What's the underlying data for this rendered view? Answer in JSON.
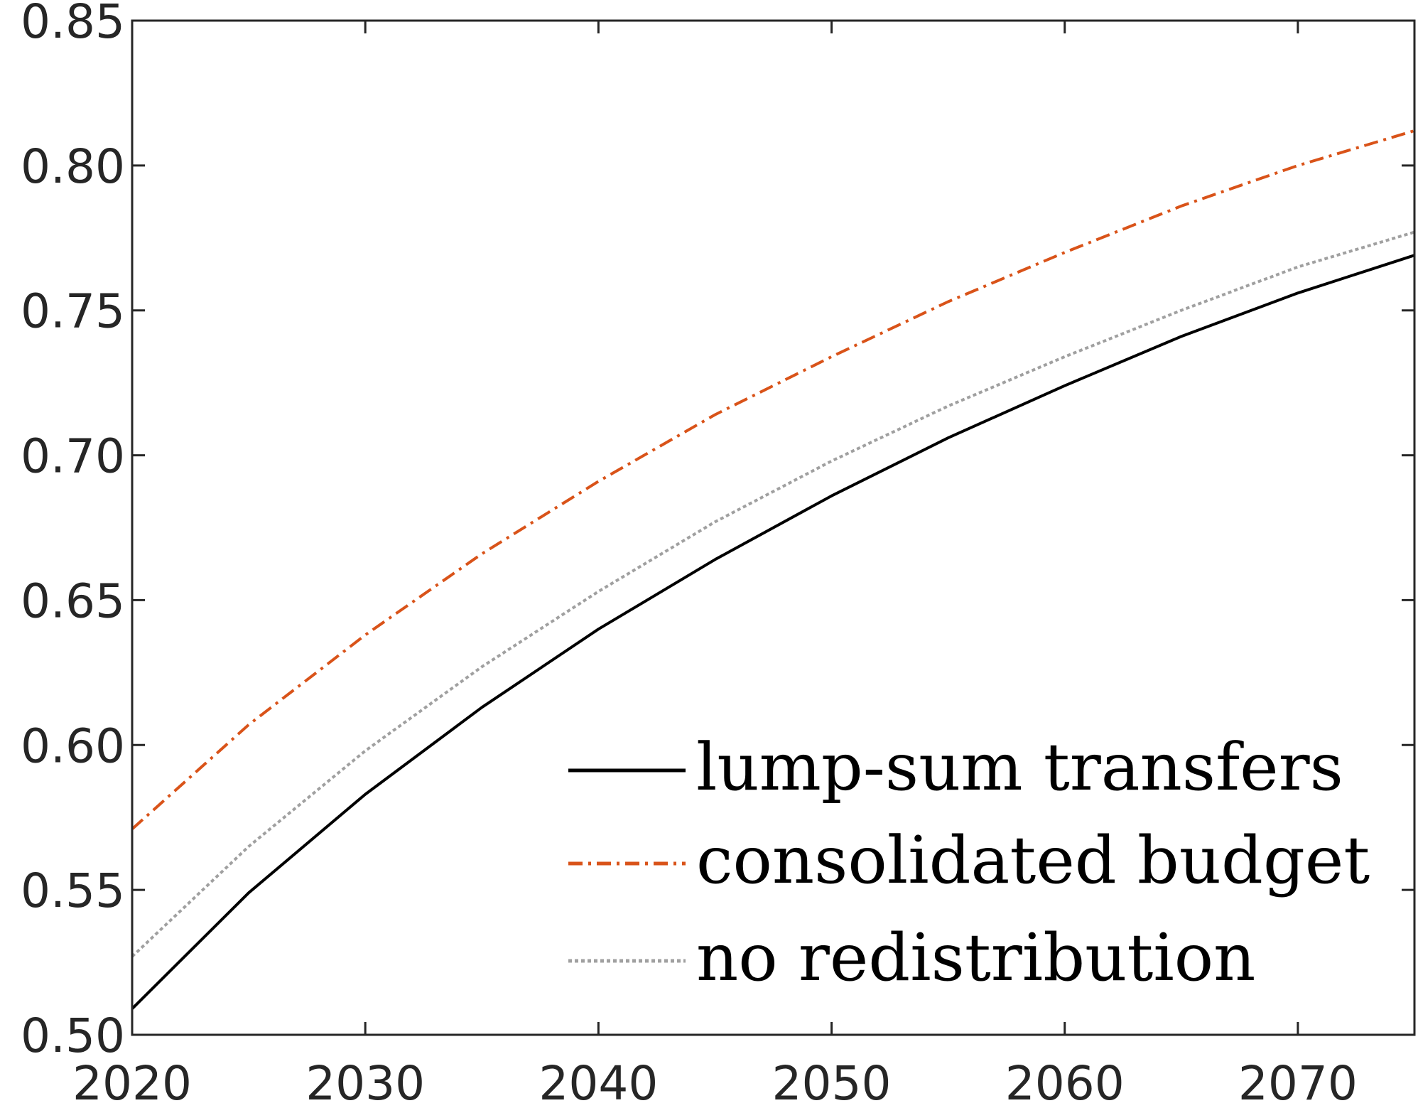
{
  "chart_data": {
    "type": "line",
    "title": "",
    "xlabel": "",
    "ylabel": "",
    "xlim": [
      2020,
      2075
    ],
    "ylim": [
      0.5,
      0.85
    ],
    "grid": false,
    "legend_position": "bottom-right",
    "x_ticks": [
      "2020",
      "2030",
      "2040",
      "2050",
      "2060",
      "2070"
    ],
    "x_tick_values": [
      2020,
      2030,
      2040,
      2050,
      2060,
      2070
    ],
    "y_ticks": [
      "0.50",
      "0.55",
      "0.60",
      "0.65",
      "0.70",
      "0.75",
      "0.80",
      "0.85"
    ],
    "y_tick_values": [
      0.5,
      0.55,
      0.6,
      0.65,
      0.7,
      0.75,
      0.8,
      0.85
    ],
    "x": [
      2020,
      2025,
      2030,
      2035,
      2040,
      2045,
      2050,
      2055,
      2060,
      2065,
      2070,
      2075
    ],
    "series": [
      {
        "name": "lump-sum transfers",
        "color": "#000000",
        "style": "solid",
        "values": [
          0.509,
          0.549,
          0.583,
          0.613,
          0.64,
          0.664,
          0.686,
          0.706,
          0.724,
          0.741,
          0.756,
          0.769
        ]
      },
      {
        "name": "consolidated budget",
        "color": "#D95319",
        "style": "dash-dot",
        "values": [
          0.571,
          0.607,
          0.638,
          0.666,
          0.691,
          0.714,
          0.734,
          0.753,
          0.77,
          0.786,
          0.8,
          0.812
        ]
      },
      {
        "name": "no redistribution",
        "color": "#A0A0A0",
        "style": "dotted",
        "values": [
          0.527,
          0.565,
          0.598,
          0.627,
          0.653,
          0.677,
          0.698,
          0.717,
          0.734,
          0.75,
          0.765,
          0.777
        ]
      }
    ]
  }
}
